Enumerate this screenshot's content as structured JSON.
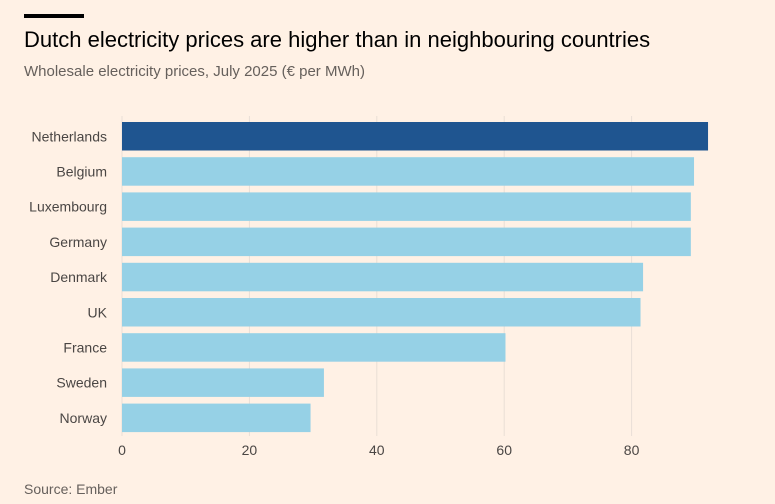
{
  "title": "Dutch electricity prices are higher than in neighbouring countries",
  "subtitle": "Wholesale electricity prices, July 2025 (€ per MWh)",
  "source": "Source: Ember",
  "colors": {
    "background": "#FFF1E5",
    "highlight_bar": "#1F5590",
    "bar": "#96D1E6",
    "gridline": "#E9DFD6",
    "label_text": "#4A4644"
  },
  "chart_data": {
    "type": "bar",
    "orientation": "horizontal",
    "title": "Dutch electricity prices are higher than in neighbouring countries",
    "subtitle": "Wholesale electricity prices, July 2025 (€ per MWh)",
    "xlabel": "",
    "ylabel": "",
    "categories": [
      "Netherlands",
      "Belgium",
      "Luxembourg",
      "Germany",
      "Denmark",
      "UK",
      "France",
      "Sweden",
      "Norway"
    ],
    "values": [
      92,
      89.8,
      89.3,
      89.3,
      81.8,
      81.4,
      60.2,
      31.7,
      29.6
    ],
    "highlight": "Netherlands",
    "xlim": [
      0,
      100
    ],
    "xticks": [
      0,
      20,
      40,
      60,
      80
    ],
    "grid": true
  }
}
